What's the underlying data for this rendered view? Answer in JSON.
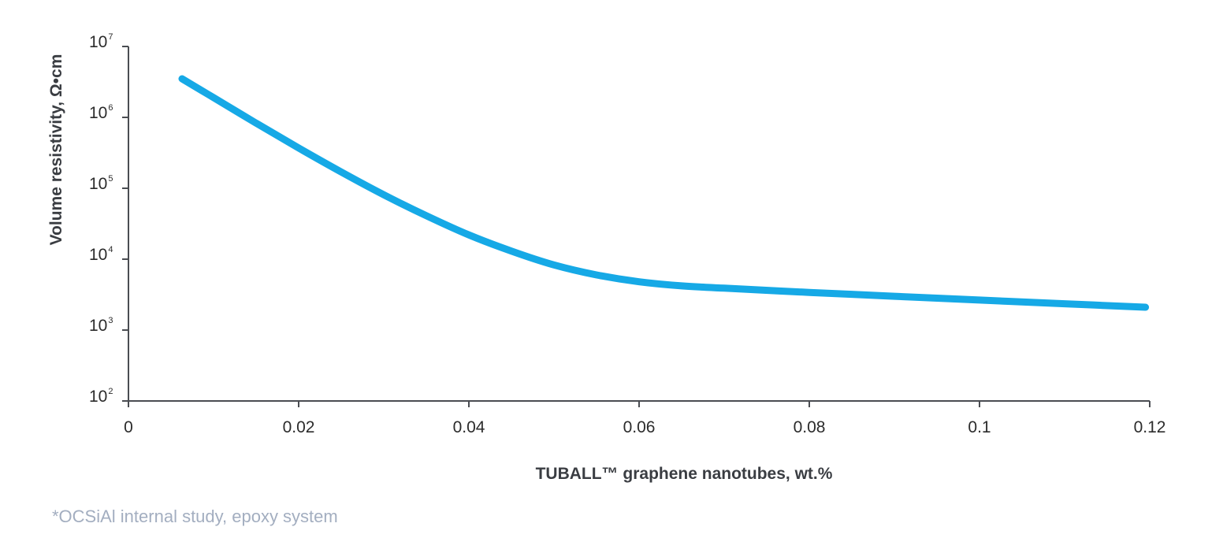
{
  "chart_data": {
    "type": "line",
    "xlabel": "TUBALL™ graphene nanotubes, wt.%",
    "ylabel": "Volume resistivity, Ω•cm",
    "x_scale": "linear",
    "y_scale": "log",
    "xlim": [
      0,
      0.12
    ],
    "ylim": [
      100,
      10000000
    ],
    "x_ticks": [
      "0",
      "0.02",
      "0.04",
      "0.06",
      "0.08",
      "0.1",
      "0.12"
    ],
    "y_ticks": [
      {
        "base": "10",
        "exp": "2"
      },
      {
        "base": "10",
        "exp": "3"
      },
      {
        "base": "10",
        "exp": "4"
      },
      {
        "base": "10",
        "exp": "5"
      },
      {
        "base": "10",
        "exp": "6"
      },
      {
        "base": "10",
        "exp": "7"
      }
    ],
    "grid": false,
    "legend": "none",
    "series": [
      {
        "color": "#16a9e6",
        "x": [
          0.0063,
          0.01,
          0.015,
          0.02,
          0.025,
          0.03,
          0.035,
          0.04,
          0.045,
          0.05,
          0.055,
          0.06,
          0.065,
          0.07,
          0.08,
          0.09,
          0.1,
          0.11,
          0.1195
        ],
        "y": [
          3500000,
          1900000,
          830000,
          370000,
          170000,
          81000,
          41000,
          22000,
          13000,
          8300,
          6000,
          4800,
          4200,
          3900,
          3400,
          3000,
          2650,
          2350,
          2100
        ]
      }
    ]
  },
  "footnote": "*OCSiAl internal study, epoxy system"
}
